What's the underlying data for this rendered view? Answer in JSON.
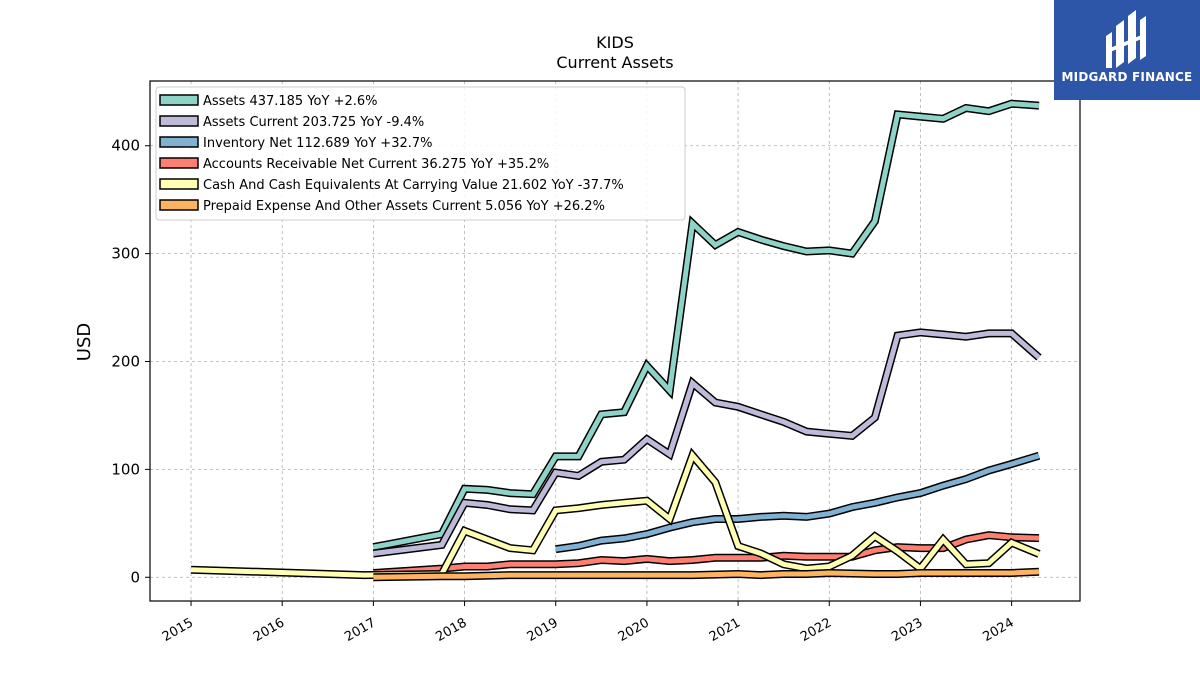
{
  "logo": {
    "text": "MIDGARD FINANCE",
    "bg_color": "#2d55a8"
  },
  "chart_data": {
    "type": "line",
    "title": "KIDS",
    "subtitle": "Current  Assets",
    "xlabel": "",
    "ylabel": "USD",
    "xlim": [
      2014.55,
      2024.75
    ],
    "ylim": [
      -22,
      460
    ],
    "x_ticks": [
      2015,
      2016,
      2017,
      2018,
      2019,
      2020,
      2021,
      2022,
      2023,
      2024
    ],
    "x_tick_labels": [
      "2015",
      "2016",
      "2017",
      "2018",
      "2019",
      "2020",
      "2021",
      "2022",
      "2023",
      "2024"
    ],
    "y_ticks": [
      0,
      100,
      200,
      300,
      400
    ],
    "y_tick_labels": [
      "0",
      "100",
      "200",
      "300",
      "400"
    ],
    "grid": true,
    "legend_position": "top-left",
    "series": [
      {
        "name": "Assets  437.185 YoY +2.6%",
        "color": "#8dd3c7",
        "points": [
          [
            2017.0,
            28
          ],
          [
            2017.75,
            40
          ],
          [
            2018.0,
            82
          ],
          [
            2018.25,
            81
          ],
          [
            2018.5,
            78
          ],
          [
            2018.75,
            77
          ],
          [
            2019.0,
            112
          ],
          [
            2019.25,
            112
          ],
          [
            2019.5,
            151
          ],
          [
            2019.75,
            153
          ],
          [
            2020.0,
            196
          ],
          [
            2020.25,
            173
          ],
          [
            2020.5,
            328
          ],
          [
            2020.75,
            308
          ],
          [
            2021.0,
            320
          ],
          [
            2021.25,
            313
          ],
          [
            2021.5,
            307
          ],
          [
            2021.75,
            302
          ],
          [
            2022.0,
            303
          ],
          [
            2022.25,
            300
          ],
          [
            2022.5,
            330
          ],
          [
            2022.75,
            429
          ],
          [
            2023.0,
            427
          ],
          [
            2023.25,
            425
          ],
          [
            2023.5,
            435
          ],
          [
            2023.75,
            432
          ],
          [
            2024.0,
            439
          ],
          [
            2024.3,
            437.185
          ]
        ]
      },
      {
        "name": "Assets Current  203.725 YoY -9.4%",
        "color": "#bebada",
        "points": [
          [
            2017.0,
            22
          ],
          [
            2017.75,
            30
          ],
          [
            2018.0,
            69
          ],
          [
            2018.25,
            67
          ],
          [
            2018.5,
            63
          ],
          [
            2018.75,
            62
          ],
          [
            2019.0,
            97
          ],
          [
            2019.25,
            94
          ],
          [
            2019.5,
            107
          ],
          [
            2019.75,
            109
          ],
          [
            2020.0,
            128
          ],
          [
            2020.25,
            114
          ],
          [
            2020.5,
            180
          ],
          [
            2020.75,
            162
          ],
          [
            2021.0,
            158
          ],
          [
            2021.25,
            151
          ],
          [
            2021.5,
            144
          ],
          [
            2021.75,
            135
          ],
          [
            2022.0,
            133
          ],
          [
            2022.25,
            131
          ],
          [
            2022.5,
            148
          ],
          [
            2022.75,
            224
          ],
          [
            2023.0,
            227
          ],
          [
            2023.25,
            225
          ],
          [
            2023.5,
            223
          ],
          [
            2023.75,
            226
          ],
          [
            2024.0,
            226
          ],
          [
            2024.3,
            203.725
          ]
        ]
      },
      {
        "name": "Inventory Net  112.689 YoY +32.7%",
        "color": "#80b1d3",
        "points": [
          [
            2019.0,
            26
          ],
          [
            2019.25,
            29
          ],
          [
            2019.5,
            34
          ],
          [
            2019.75,
            36
          ],
          [
            2020.0,
            40
          ],
          [
            2020.25,
            46
          ],
          [
            2020.5,
            51
          ],
          [
            2020.75,
            54
          ],
          [
            2021.0,
            54
          ],
          [
            2021.25,
            56
          ],
          [
            2021.5,
            57
          ],
          [
            2021.75,
            56
          ],
          [
            2022.0,
            59
          ],
          [
            2022.25,
            65
          ],
          [
            2022.5,
            69
          ],
          [
            2022.75,
            74
          ],
          [
            2023.0,
            78
          ],
          [
            2023.25,
            85
          ],
          [
            2023.5,
            91
          ],
          [
            2023.75,
            99
          ],
          [
            2024.0,
            105
          ],
          [
            2024.3,
            112.689
          ]
        ]
      },
      {
        "name": "Accounts Receivable Net Current  36.275 YoY +35.2%",
        "color": "#fb8072",
        "points": [
          [
            2017.0,
            4
          ],
          [
            2017.75,
            8
          ],
          [
            2018.0,
            10
          ],
          [
            2018.25,
            10
          ],
          [
            2018.5,
            12
          ],
          [
            2018.75,
            12
          ],
          [
            2019.0,
            12
          ],
          [
            2019.25,
            13
          ],
          [
            2019.5,
            16
          ],
          [
            2019.75,
            15
          ],
          [
            2020.0,
            17
          ],
          [
            2020.25,
            15
          ],
          [
            2020.5,
            16
          ],
          [
            2020.75,
            18
          ],
          [
            2021.0,
            18
          ],
          [
            2021.25,
            18
          ],
          [
            2021.5,
            20
          ],
          [
            2021.75,
            19
          ],
          [
            2022.0,
            19
          ],
          [
            2022.25,
            19
          ],
          [
            2022.5,
            25
          ],
          [
            2022.75,
            28
          ],
          [
            2023.0,
            27
          ],
          [
            2023.25,
            27
          ],
          [
            2023.5,
            35
          ],
          [
            2023.75,
            39
          ],
          [
            2024.0,
            37
          ],
          [
            2024.3,
            36.275
          ]
        ]
      },
      {
        "name": "Cash And Cash Equivalents At Carrying Value  21.602 YoY -37.7%",
        "color": "#ffffb3",
        "points": [
          [
            2015.0,
            7
          ],
          [
            2016.9,
            2
          ],
          [
            2017.75,
            3
          ],
          [
            2018.0,
            43
          ],
          [
            2018.5,
            27
          ],
          [
            2018.75,
            25
          ],
          [
            2019.0,
            62
          ],
          [
            2019.25,
            64
          ],
          [
            2019.5,
            67
          ],
          [
            2019.75,
            69
          ],
          [
            2020.0,
            71
          ],
          [
            2020.25,
            54
          ],
          [
            2020.5,
            113
          ],
          [
            2020.75,
            88
          ],
          [
            2021.0,
            29
          ],
          [
            2021.25,
            22
          ],
          [
            2021.5,
            12
          ],
          [
            2021.75,
            8
          ],
          [
            2022.0,
            10
          ],
          [
            2022.25,
            20
          ],
          [
            2022.5,
            38
          ],
          [
            2022.75,
            24
          ],
          [
            2023.0,
            8
          ],
          [
            2023.25,
            35
          ],
          [
            2023.5,
            12
          ],
          [
            2023.75,
            13
          ],
          [
            2024.0,
            32
          ],
          [
            2024.3,
            21.602
          ]
        ]
      },
      {
        "name": "Prepaid Expense And Other Assets Current  5.056 YoY +26.2%",
        "color": "#fdb462",
        "points": [
          [
            2017.0,
            0
          ],
          [
            2017.75,
            1
          ],
          [
            2018.0,
            1
          ],
          [
            2018.5,
            2
          ],
          [
            2019.0,
            2
          ],
          [
            2019.5,
            2
          ],
          [
            2020.0,
            2
          ],
          [
            2020.5,
            2
          ],
          [
            2021.0,
            3
          ],
          [
            2021.25,
            2
          ],
          [
            2021.5,
            3
          ],
          [
            2021.75,
            3
          ],
          [
            2022.0,
            4
          ],
          [
            2022.5,
            3
          ],
          [
            2022.75,
            3
          ],
          [
            2023.0,
            4
          ],
          [
            2023.25,
            4
          ],
          [
            2023.5,
            4
          ],
          [
            2023.75,
            4
          ],
          [
            2024.0,
            4
          ],
          [
            2024.3,
            5.056
          ]
        ]
      }
    ]
  }
}
